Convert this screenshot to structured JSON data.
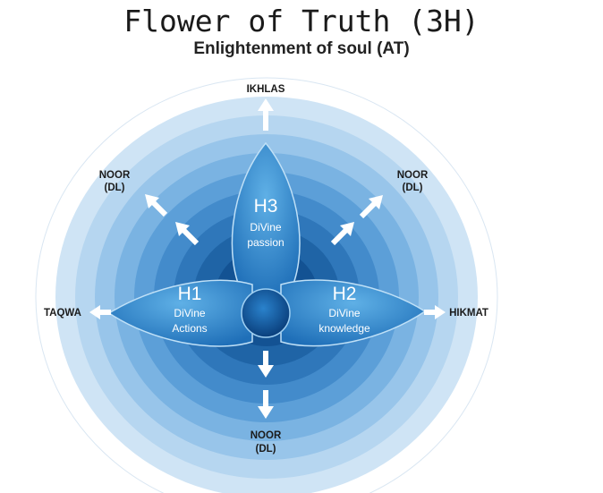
{
  "title": "Flower of Truth (3H)",
  "subtitle": "Enlightenment of soul (AT)",
  "labels": {
    "top": "IKHLAS",
    "left": "TAQWA",
    "right": "HIKMAT",
    "upper_left_1": "NOOR",
    "upper_left_2": "(DL)",
    "upper_right_1": "NOOR",
    "upper_right_2": "(DL)",
    "bottom_1": "NOOR",
    "bottom_2": "(DL)"
  },
  "petals": {
    "h1": {
      "title": "H1",
      "line1": "DiVine",
      "line2": "Actions"
    },
    "h2": {
      "title": "H2",
      "line1": "DiVine",
      "line2": "knowledge"
    },
    "h3": {
      "title": "H3",
      "line1": "DiVine",
      "line2": "passion"
    }
  },
  "colors": {
    "ring_outer": "#dcebf8",
    "ring_inner": "#0a4f95",
    "petal": "#3d93d4",
    "arrow": "#ffffff"
  }
}
